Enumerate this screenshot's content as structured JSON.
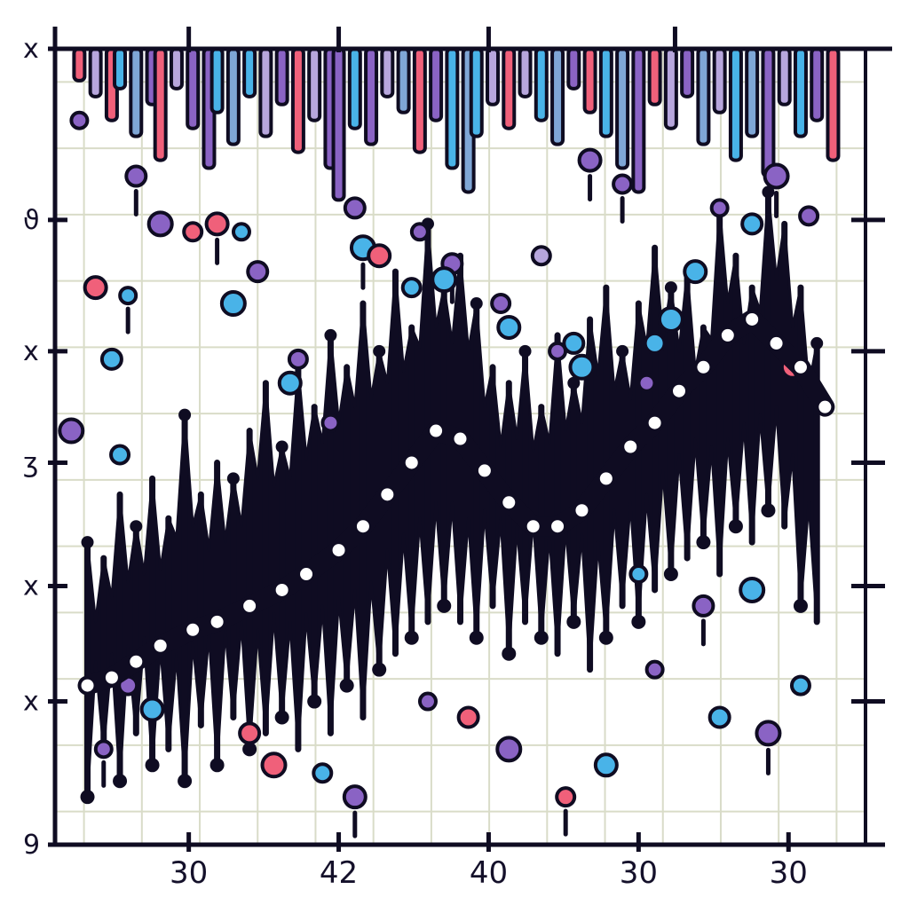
{
  "colors": {
    "ink": "#0f0c22",
    "grid": "#d9dcc8",
    "background": "#ffffff",
    "pink": "#f0607a",
    "purple": "#8a63c4",
    "blue": "#49b3e8",
    "lavender": "#b7a6dd",
    "steel_blue": "#7fa6d6",
    "dot_fill": "#ffffff"
  },
  "chart_data": {
    "type": "line",
    "title": "",
    "xlabel": "",
    "ylabel": "",
    "x_tick_labels": [
      "30",
      "42",
      "40",
      "30",
      "30"
    ],
    "y_tick_labels": [
      "x",
      "ϑ",
      "x",
      "ʒ",
      "x",
      "x",
      "9"
    ],
    "grid": true,
    "xlim": [
      0,
      100
    ],
    "ylim": [
      0,
      100
    ],
    "legend": "none",
    "series": [
      {
        "style": "white-dotted trend line",
        "x": [
          4,
          7,
          10,
          13,
          17,
          20,
          24,
          28,
          31,
          35,
          38,
          41,
          44,
          47,
          50,
          53,
          56,
          59,
          62,
          65,
          68,
          71,
          74,
          77,
          80,
          83,
          86,
          89,
          92,
          95
        ],
        "y": [
          20,
          21,
          23,
          25,
          27,
          28,
          30,
          32,
          34,
          37,
          40,
          44,
          48,
          52,
          51,
          47,
          43,
          40,
          40,
          42,
          46,
          50,
          53,
          57,
          60,
          64,
          66,
          63,
          60,
          55
        ]
      },
      {
        "style": "black spike band",
        "x": [
          4,
          6,
          8,
          10,
          12,
          14,
          16,
          18,
          20,
          22,
          24,
          26,
          28,
          30,
          32,
          34,
          36,
          38,
          40,
          42,
          44,
          46,
          48,
          50,
          52,
          54,
          56,
          58,
          60,
          62,
          64,
          66,
          68,
          70,
          72,
          74,
          76,
          78,
          80,
          82,
          84,
          86,
          88,
          90,
          92,
          94
        ],
        "high": [
          38,
          36,
          44,
          40,
          46,
          41,
          54,
          44,
          48,
          46,
          52,
          58,
          50,
          60,
          55,
          64,
          60,
          68,
          62,
          72,
          65,
          78,
          70,
          74,
          68,
          60,
          58,
          62,
          55,
          64,
          58,
          66,
          70,
          62,
          68,
          75,
          70,
          72,
          65,
          80,
          74,
          70,
          82,
          78,
          70,
          63
        ],
        "low": [
          6,
          12,
          8,
          14,
          10,
          12,
          8,
          15,
          10,
          16,
          12,
          14,
          16,
          12,
          18,
          14,
          20,
          16,
          22,
          24,
          26,
          28,
          30,
          28,
          26,
          30,
          24,
          28,
          26,
          24,
          28,
          22,
          26,
          30,
          28,
          32,
          34,
          36,
          38,
          34,
          40,
          38,
          42,
          40,
          30,
          28
        ]
      },
      {
        "style": "colored bars hanging from top axis",
        "x": [
          3,
          5,
          7,
          8,
          10,
          12,
          13,
          15,
          17,
          19,
          20,
          22,
          24,
          26,
          28,
          30,
          32,
          34,
          35,
          37,
          39,
          41,
          43,
          45,
          47,
          49,
          51,
          52,
          54,
          56,
          58,
          60,
          62,
          64,
          66,
          68,
          70,
          72,
          74,
          76,
          78,
          80,
          82,
          84,
          86,
          88,
          90,
          92,
          94,
          96
        ],
        "depth": [
          4,
          6,
          9,
          5,
          11,
          7,
          14,
          5,
          10,
          15,
          8,
          12,
          6,
          11,
          7,
          13,
          9,
          15,
          19,
          10,
          12,
          6,
          8,
          13,
          9,
          15,
          18,
          11,
          7,
          10,
          6,
          9,
          12,
          5,
          8,
          11,
          15,
          18,
          7,
          10,
          6,
          12,
          8,
          14,
          11,
          16,
          7,
          11,
          9,
          14
        ],
        "colors": [
          "pink",
          "lavender",
          "pink",
          "blue",
          "steel_blue",
          "purple",
          "pink",
          "lavender",
          "purple",
          "purple",
          "blue",
          "steel_blue",
          "blue",
          "lavender",
          "purple",
          "pink",
          "lavender",
          "purple",
          "purple",
          "blue",
          "purple",
          "lavender",
          "steel_blue",
          "pink",
          "purple",
          "blue",
          "steel_blue",
          "blue",
          "lavender",
          "pink",
          "lavender",
          "blue",
          "steel_blue",
          "purple",
          "pink",
          "blue",
          "steel_blue",
          "purple",
          "pink",
          "lavender",
          "purple",
          "steel_blue",
          "lavender",
          "blue",
          "steel_blue",
          "purple",
          "lavender",
          "blue",
          "purple",
          "pink"
        ]
      },
      {
        "style": "colored circle markers",
        "x": [
          3,
          10,
          13,
          17,
          5,
          9,
          7,
          2,
          8,
          20,
          23,
          25,
          22,
          30,
          29,
          34,
          37,
          38,
          44,
          40,
          45,
          49,
          48,
          55,
          56,
          62,
          64,
          65,
          60,
          66,
          73,
          74,
          76,
          70,
          79,
          82,
          86,
          89,
          93,
          91,
          72,
          80,
          86,
          9,
          12,
          6,
          24,
          27,
          33,
          37,
          46,
          51,
          56,
          63,
          68,
          74,
          82,
          88,
          92
        ],
        "y": [
          91,
          84,
          78,
          77,
          70,
          69,
          61,
          52,
          49,
          78,
          77,
          72,
          68,
          61,
          58,
          53,
          80,
          75,
          70,
          74,
          77,
          73,
          71,
          68,
          65,
          62,
          63,
          60,
          74,
          86,
          58,
          63,
          66,
          83,
          72,
          80,
          78,
          84,
          79,
          60,
          34,
          30,
          32,
          20,
          17,
          12,
          14,
          10,
          9,
          6,
          18,
          16,
          12,
          6,
          10,
          22,
          16,
          14,
          20
        ],
        "colors": [
          "purple",
          "purple",
          "purple",
          "pink",
          "pink",
          "blue",
          "blue",
          "purple",
          "blue",
          "pink",
          "blue",
          "purple",
          "blue",
          "purple",
          "blue",
          "purple",
          "purple",
          "blue",
          "blue",
          "pink",
          "purple",
          "purple",
          "blue",
          "purple",
          "blue",
          "purple",
          "blue",
          "blue",
          "lavender",
          "purple",
          "purple",
          "blue",
          "blue",
          "purple",
          "blue",
          "purple",
          "blue",
          "purple",
          "purple",
          "pink",
          "blue",
          "purple",
          "blue",
          "purple",
          "blue",
          "purple",
          "pink",
          "pink",
          "blue",
          "purple",
          "purple",
          "pink",
          "purple",
          "pink",
          "blue",
          "purple",
          "blue",
          "purple",
          "blue"
        ]
      }
    ]
  }
}
